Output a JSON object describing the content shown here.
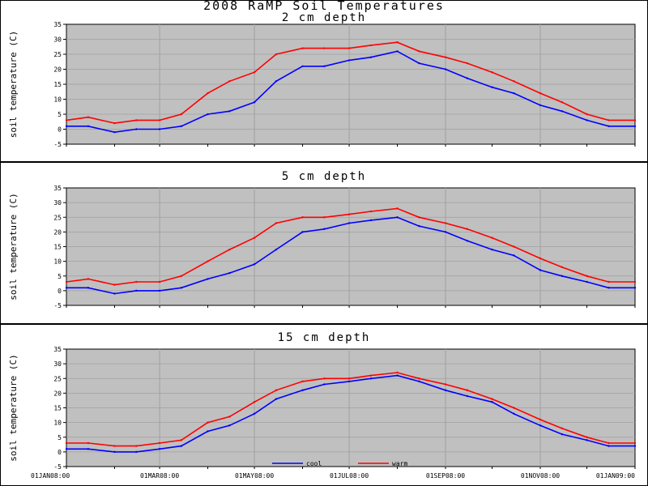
{
  "title": "2008 RaMP Soil Temperatures",
  "colors": {
    "cool": "#0000ff",
    "warm": "#ff0000",
    "plot_bg": "#c0c0c0",
    "grid": "#a0a0a0"
  },
  "chart_data": [
    {
      "type": "line",
      "title": "2 cm depth",
      "ylabel": "soil temperature (C)",
      "ylim": [
        -5,
        35
      ],
      "yticks": [
        -5,
        0,
        5,
        10,
        15,
        20,
        25,
        30,
        35
      ],
      "xlim": [
        "2008-01-01",
        "2009-01-01"
      ],
      "grid": true,
      "series": [
        {
          "name": "cool",
          "x": [
            "2008-01-01",
            "2008-01-15",
            "2008-02-01",
            "2008-02-15",
            "2008-03-01",
            "2008-03-15",
            "2008-04-01",
            "2008-04-15",
            "2008-05-01",
            "2008-05-15",
            "2008-06-01",
            "2008-06-15",
            "2008-07-01",
            "2008-07-15",
            "2008-08-01",
            "2008-08-15",
            "2008-09-01",
            "2008-09-15",
            "2008-10-01",
            "2008-10-15",
            "2008-11-01",
            "2008-11-15",
            "2008-12-01",
            "2008-12-15",
            "2009-01-01"
          ],
          "values": [
            1,
            1,
            -1,
            0,
            0,
            1,
            5,
            6,
            9,
            16,
            21,
            21,
            23,
            24,
            26,
            22,
            20,
            17,
            14,
            12,
            8,
            6,
            3,
            1,
            1
          ]
        },
        {
          "name": "warm",
          "x": [
            "2008-01-01",
            "2008-01-15",
            "2008-02-01",
            "2008-02-15",
            "2008-03-01",
            "2008-03-15",
            "2008-04-01",
            "2008-04-15",
            "2008-05-01",
            "2008-05-15",
            "2008-06-01",
            "2008-06-15",
            "2008-07-01",
            "2008-07-15",
            "2008-08-01",
            "2008-08-15",
            "2008-09-01",
            "2008-09-15",
            "2008-10-01",
            "2008-10-15",
            "2008-11-01",
            "2008-11-15",
            "2008-12-01",
            "2008-12-15",
            "2009-01-01"
          ],
          "values": [
            3,
            4,
            2,
            3,
            3,
            5,
            12,
            16,
            19,
            25,
            27,
            27,
            27,
            28,
            29,
            26,
            24,
            22,
            19,
            16,
            12,
            9,
            5,
            3,
            3
          ]
        }
      ]
    },
    {
      "type": "line",
      "title": "5 cm depth",
      "ylabel": "soil temperature (C)",
      "ylim": [
        -5,
        35
      ],
      "yticks": [
        -5,
        0,
        5,
        10,
        15,
        20,
        25,
        30,
        35
      ],
      "xlim": [
        "2008-01-01",
        "2009-01-01"
      ],
      "grid": true,
      "series": [
        {
          "name": "cool",
          "x": [
            "2008-01-01",
            "2008-01-15",
            "2008-02-01",
            "2008-02-15",
            "2008-03-01",
            "2008-03-15",
            "2008-04-01",
            "2008-04-15",
            "2008-05-01",
            "2008-05-15",
            "2008-06-01",
            "2008-06-15",
            "2008-07-01",
            "2008-07-15",
            "2008-08-01",
            "2008-08-15",
            "2008-09-01",
            "2008-09-15",
            "2008-10-01",
            "2008-10-15",
            "2008-11-01",
            "2008-11-15",
            "2008-12-01",
            "2008-12-15",
            "2009-01-01"
          ],
          "values": [
            1,
            1,
            -1,
            0,
            0,
            1,
            4,
            6,
            9,
            14,
            20,
            21,
            23,
            24,
            25,
            22,
            20,
            17,
            14,
            12,
            7,
            5,
            3,
            1,
            1
          ]
        },
        {
          "name": "warm",
          "x": [
            "2008-01-01",
            "2008-01-15",
            "2008-02-01",
            "2008-02-15",
            "2008-03-01",
            "2008-03-15",
            "2008-04-01",
            "2008-04-15",
            "2008-05-01",
            "2008-05-15",
            "2008-06-01",
            "2008-06-15",
            "2008-07-01",
            "2008-07-15",
            "2008-08-01",
            "2008-08-15",
            "2008-09-01",
            "2008-09-15",
            "2008-10-01",
            "2008-10-15",
            "2008-11-01",
            "2008-11-15",
            "2008-12-01",
            "2008-12-15",
            "2009-01-01"
          ],
          "values": [
            3,
            4,
            2,
            3,
            3,
            5,
            10,
            14,
            18,
            23,
            25,
            25,
            26,
            27,
            28,
            25,
            23,
            21,
            18,
            15,
            11,
            8,
            5,
            3,
            3
          ]
        }
      ]
    },
    {
      "type": "line",
      "title": "15 cm depth",
      "ylabel": "soil temperature (C)",
      "ylim": [
        -5,
        35
      ],
      "yticks": [
        -5,
        0,
        5,
        10,
        15,
        20,
        25,
        30,
        35
      ],
      "xlim": [
        "2008-01-01",
        "2009-01-01"
      ],
      "xticks": [
        "01JAN08:00",
        "01MAR08:00",
        "01MAY08:00",
        "01JUL08:00",
        "01SEP08:00",
        "01NOV08:00",
        "01JAN09:00"
      ],
      "xtick_dates": [
        "2008-01-01",
        "2008-03-01",
        "2008-05-01",
        "2008-07-01",
        "2008-09-01",
        "2008-11-01",
        "2009-01-01"
      ],
      "grid": true,
      "legend": {
        "placement": "bottom-center",
        "entries": [
          "cool",
          "warm"
        ]
      },
      "series": [
        {
          "name": "cool",
          "x": [
            "2008-01-01",
            "2008-01-15",
            "2008-02-01",
            "2008-02-15",
            "2008-03-01",
            "2008-03-15",
            "2008-04-01",
            "2008-04-15",
            "2008-05-01",
            "2008-05-15",
            "2008-06-01",
            "2008-06-15",
            "2008-07-01",
            "2008-07-15",
            "2008-08-01",
            "2008-08-15",
            "2008-09-01",
            "2008-09-15",
            "2008-10-01",
            "2008-10-15",
            "2008-11-01",
            "2008-11-15",
            "2008-12-01",
            "2008-12-15",
            "2009-01-01"
          ],
          "values": [
            1,
            1,
            0,
            0,
            1,
            2,
            7,
            9,
            13,
            18,
            21,
            23,
            24,
            25,
            26,
            24,
            21,
            19,
            17,
            13,
            9,
            6,
            4,
            2,
            2
          ]
        },
        {
          "name": "warm",
          "x": [
            "2008-01-01",
            "2008-01-15",
            "2008-02-01",
            "2008-02-15",
            "2008-03-01",
            "2008-03-15",
            "2008-04-01",
            "2008-04-15",
            "2008-05-01",
            "2008-05-15",
            "2008-06-01",
            "2008-06-15",
            "2008-07-01",
            "2008-07-15",
            "2008-08-01",
            "2008-08-15",
            "2008-09-01",
            "2008-09-15",
            "2008-10-01",
            "2008-10-15",
            "2008-11-01",
            "2008-11-15",
            "2008-12-01",
            "2008-12-15",
            "2009-01-01"
          ],
          "values": [
            3,
            3,
            2,
            2,
            3,
            4,
            10,
            12,
            17,
            21,
            24,
            25,
            25,
            26,
            27,
            25,
            23,
            21,
            18,
            15,
            11,
            8,
            5,
            3,
            3
          ]
        }
      ]
    }
  ]
}
